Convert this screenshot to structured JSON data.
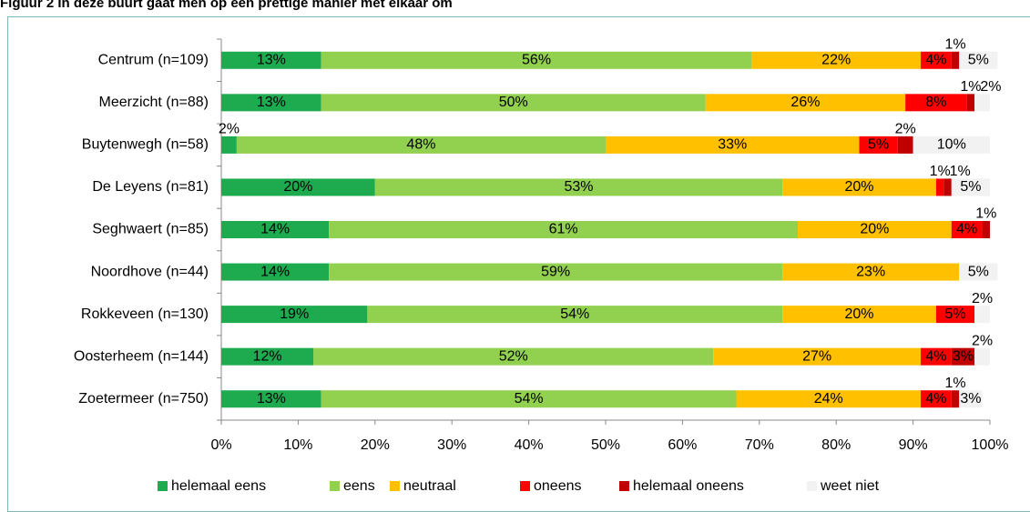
{
  "chart_data": {
    "type": "stacked_barh",
    "title": "Figuur 2 In deze buurt gaat men op een prettige manier met elkaar om",
    "categories": [
      "Centrum (n=109)",
      "Meerzicht (n=88)",
      "Buytenwegh (n=58)",
      "De Leyens (n=81)",
      "Seghwaert (n=85)",
      "Noordhove (n=44)",
      "Rokkeveen (n=130)",
      "Oosterheem (n=144)",
      "Zoetermeer (n=750)"
    ],
    "series": [
      {
        "name": "helemaal eens",
        "color": "#1eab4f",
        "values": [
          13,
          13,
          2,
          20,
          14,
          14,
          19,
          12,
          13
        ],
        "value_labels": [
          "13%",
          "13%",
          "2%",
          "20%",
          "14%",
          "14%",
          "19%",
          "12%",
          "13%"
        ]
      },
      {
        "name": "eens",
        "color": "#92d050",
        "values": [
          56,
          50,
          48,
          53,
          61,
          59,
          54,
          52,
          54
        ],
        "value_labels": [
          "56%",
          "50%",
          "48%",
          "53%",
          "61%",
          "59%",
          "54%",
          "52%",
          "54%"
        ]
      },
      {
        "name": "neutraal",
        "color": "#ffc000",
        "values": [
          22,
          26,
          33,
          20,
          20,
          23,
          20,
          27,
          24
        ],
        "value_labels": [
          "22%",
          "26%",
          "33%",
          "20%",
          "20%",
          "23%",
          "20%",
          "27%",
          "24%"
        ]
      },
      {
        "name": "oneens",
        "color": "#ff0000",
        "values": [
          4,
          8,
          5,
          1,
          4,
          null,
          5,
          4,
          4
        ],
        "value_labels": [
          "4%",
          "8%",
          "5%",
          "1%",
          "4%",
          null,
          "5%",
          "4%",
          "4%"
        ]
      },
      {
        "name": "helemaal oneens",
        "color": "#c00000",
        "values": [
          1,
          1,
          2,
          1,
          1,
          null,
          null,
          3,
          1
        ],
        "value_labels": [
          "1%",
          "1%",
          "2%",
          "1%",
          "1%",
          null,
          null,
          "3%",
          "1%"
        ]
      },
      {
        "name": "weet niet",
        "color": "#f2f2f2",
        "values": [
          5,
          2,
          10,
          5,
          null,
          5,
          2,
          2,
          3
        ],
        "value_labels": [
          "5%",
          "2%",
          "10%",
          "5%",
          null,
          "5%",
          "2%",
          "2%",
          "3%"
        ]
      }
    ],
    "xlim": [
      0,
      100
    ],
    "xticks": [
      {
        "value": 0,
        "label": "0%"
      },
      {
        "value": 10,
        "label": "10%"
      },
      {
        "value": 20,
        "label": "20%"
      },
      {
        "value": 30,
        "label": "30%"
      },
      {
        "value": 40,
        "label": "40%"
      },
      {
        "value": 50,
        "label": "50%"
      },
      {
        "value": 60,
        "label": "60%"
      },
      {
        "value": 70,
        "label": "70%"
      },
      {
        "value": 80,
        "label": "80%"
      },
      {
        "value": 90,
        "label": "90%"
      },
      {
        "value": 100,
        "label": "100%"
      }
    ],
    "legend": "bottom"
  }
}
